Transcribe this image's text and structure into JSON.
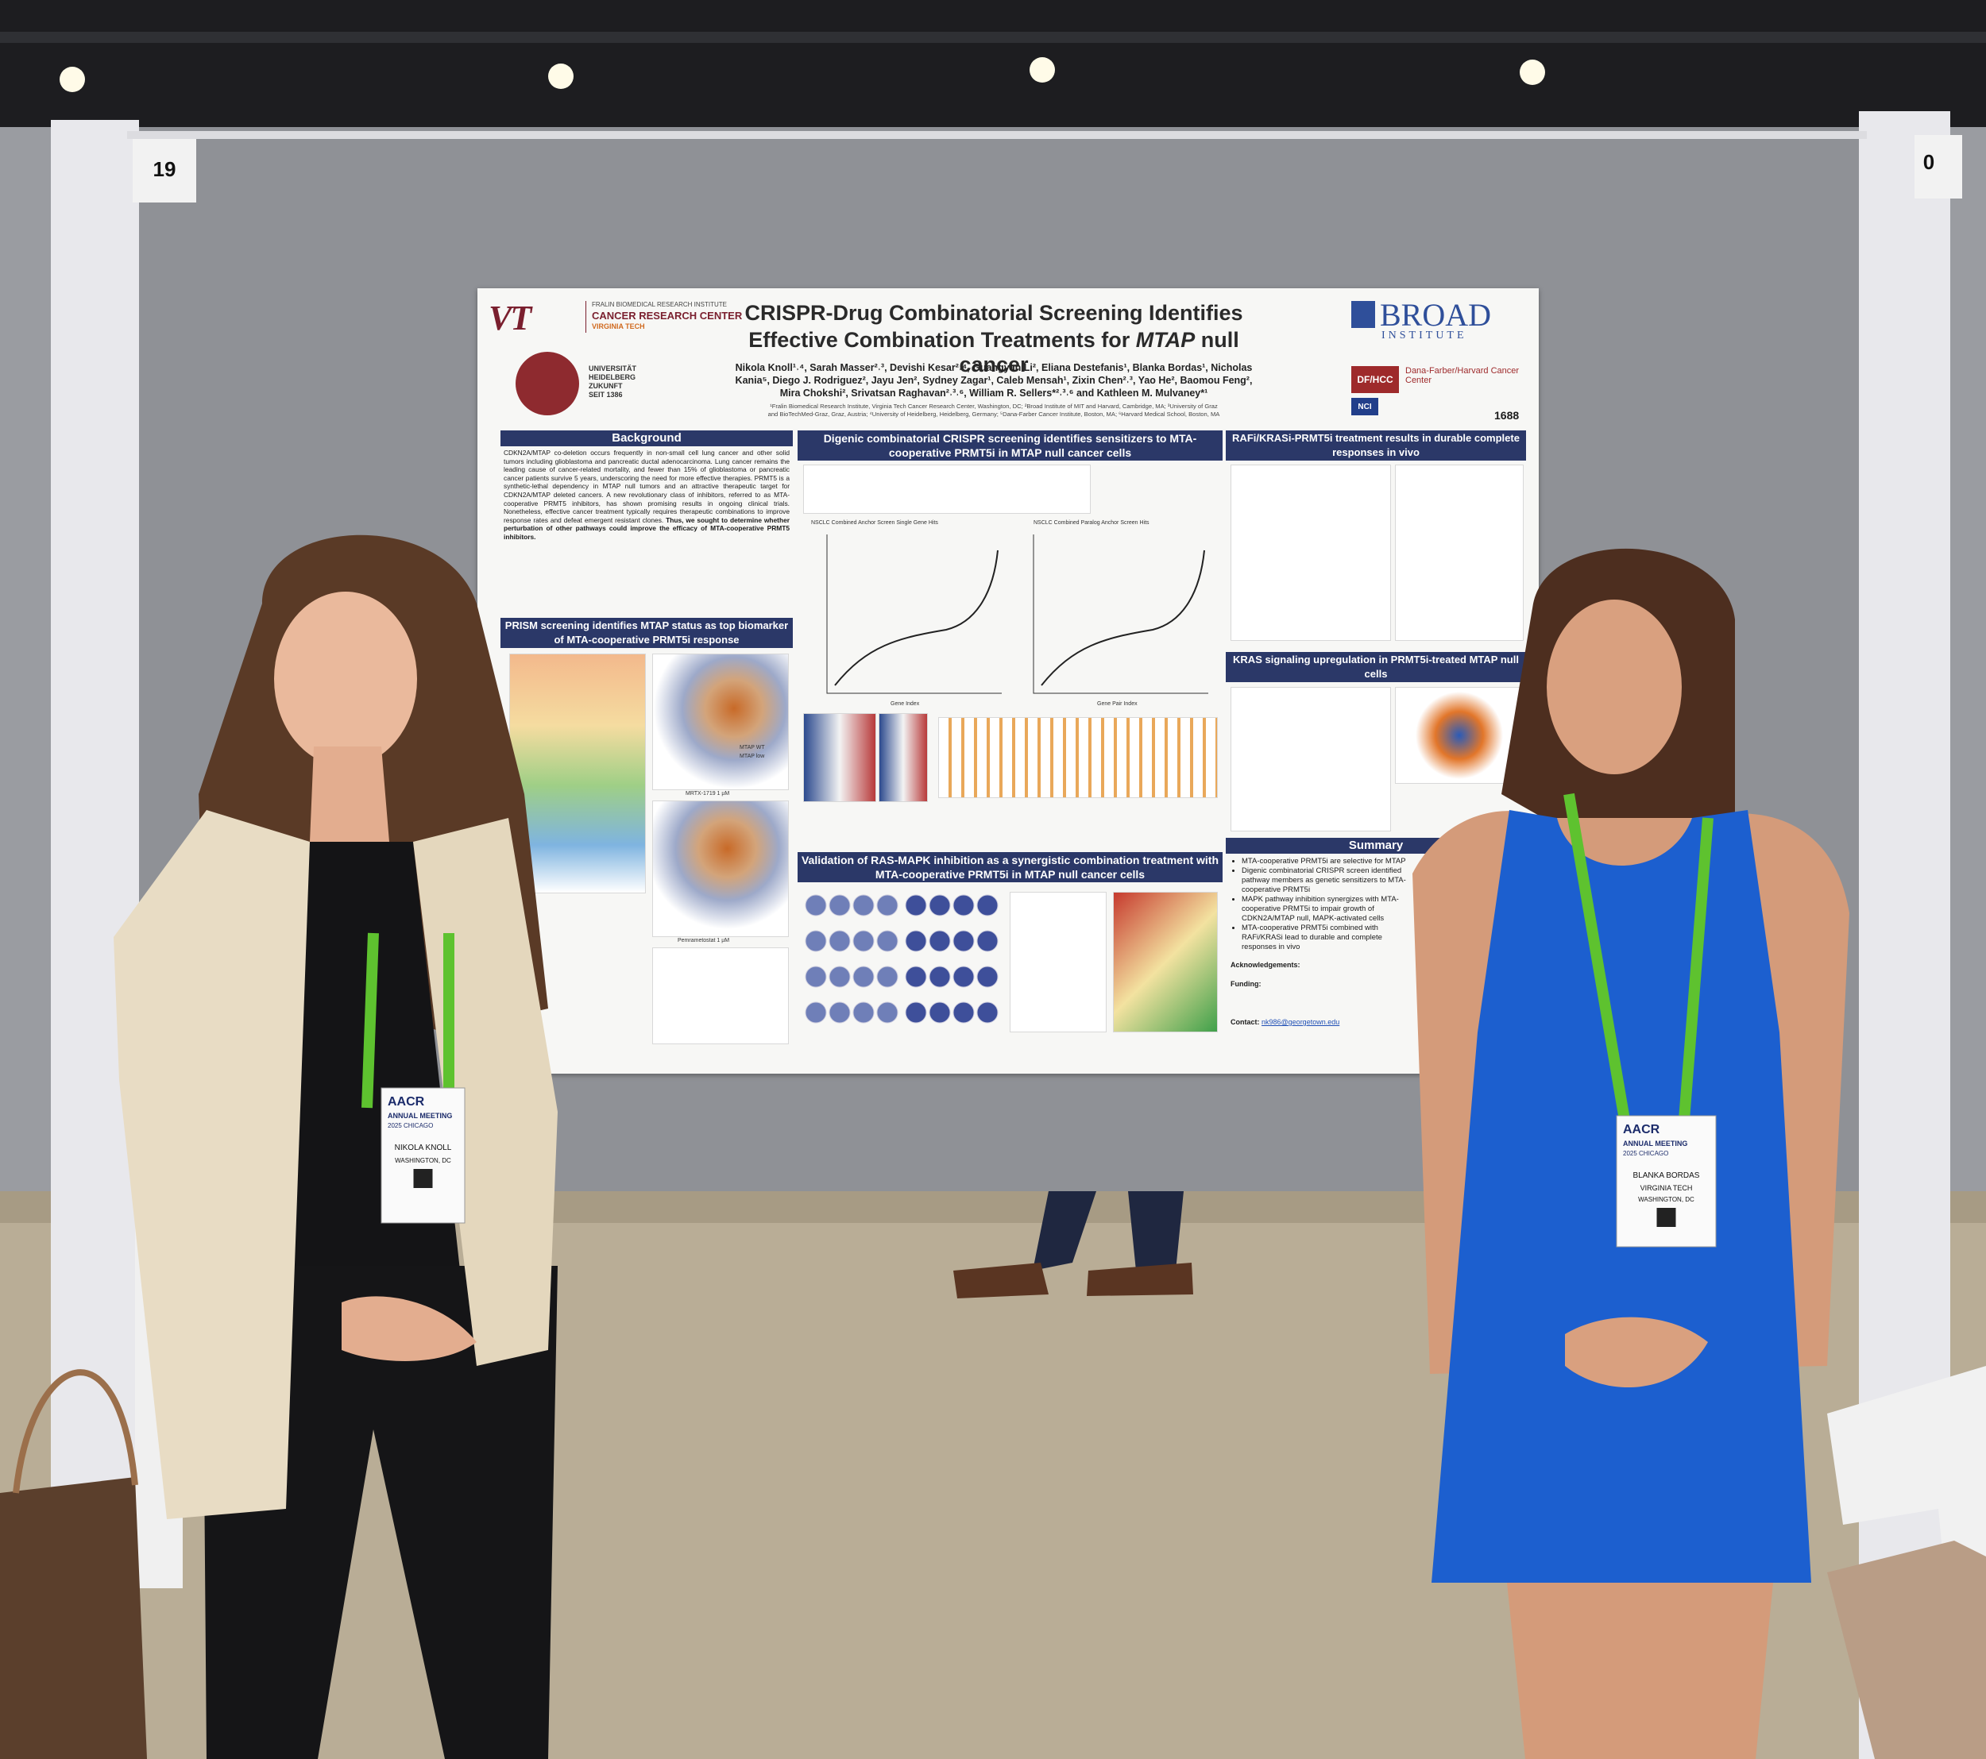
{
  "booth": {
    "left_number": "19",
    "right_number": "0"
  },
  "poster": {
    "logo_vt": "VT",
    "fralin_line1": "FRALIN BIOMEDICAL RESEARCH INSTITUTE",
    "fralin_line2": "CANCER RESEARCH CENTER",
    "fralin_line3": "VIRGINIA TECH",
    "heidelberg": [
      "UNIVERSITÄT",
      "HEIDELBERG",
      "ZUKUNFT",
      "SEIT 1386"
    ],
    "title_line1": "CRISPR-Drug Combinatorial Screening Identifies",
    "title_line2_pre": "Effective Combination Treatments for ",
    "title_line2_em": "MTAP",
    "title_line2_post": " null cancer",
    "authors": [
      "Nikola Knoll¹˒⁴, Sarah Masser²˒³, Devishi Kesar²˒⁴, Guangyan Li², Eliana Destefanis¹, Blanka Bordas¹, Nicholas",
      "Kania⁵, Diego J. Rodriguez², Jayu Jen², Sydney Zagar¹, Caleb Mensah¹, Zixin Chen²˒³, Yao He², Baomou Feng²,",
      "Mira Chokshi², Srivatsan Raghavan²˒³˒⁶, William R. Sellers*²˒³˒⁶ and Kathleen M. Mulvaney*¹"
    ],
    "affiliations": [
      "¹Fralin Biomedical Research Institute, Virginia Tech Cancer Research Center, Washington, DC; ²Broad Institute of MIT and Harvard, Cambridge, MA; ³University of Graz",
      "and BioTechMed-Graz, Graz, Austria; ⁴University of Heidelberg, Heidelberg, Germany; ⁵Dana-Farber Cancer Institute, Boston, MA; ⁶Harvard Medical School, Boston, MA"
    ],
    "broad_line1": "BROAD",
    "broad_line2": "INSTITUTE",
    "dfhcc_badge": "DF/HCC",
    "dfhcc_name": "Dana-Farber/Harvard Cancer Center",
    "nci": "NCI",
    "poster_number": "1688",
    "background_header": "Background",
    "background_text": "CDKN2A/MTAP co-deletion occurs frequently in non-small cell lung cancer and other solid tumors including glioblastoma and pancreatic ductal adenocarcinoma. Lung cancer remains the leading cause of cancer-related mortality, and fewer than 15% of glioblastoma or pancreatic cancer patients survive 5 years, underscoring the need for more effective therapies. PRMT5 is a synthetic-lethal dependency in MTAP null tumors and an attractive therapeutic target for CDKN2A/MTAP deleted cancers. A new revolutionary class of inhibitors, referred to as MTA-cooperative PRMT5 inhibitors, has shown promising results in ongoing clinical trials. Nonetheless, effective cancer treatment typically requires therapeutic combinations to improve response rates and defeat emergent resistant clones.",
    "background_bold": "Thus, we sought to determine whether perturbation of other pathways could improve the efficacy of MTA-cooperative PRMT5 inhibitors.",
    "prism_header": "PRISM screening identifies MTAP status as top biomarker of MTA-cooperative PRMT5i response",
    "prism_axis": "MRTX-1719 1 µM",
    "prism_axis2": "Pemrametostat 1 µM",
    "legend_wt": "MTAP WT",
    "legend_low": "MTAP low",
    "digenic_header": "Digenic combinatorial CRISPR screening identifies sensitizers to MTA-cooperative PRMT5i in MTAP null cancer cells",
    "plot1_title": "NSCLC Combined Anchor Screen Single Gene Hits",
    "plot2_title": "NSCLC Combined Paralog Anchor Screen Hits",
    "plot1_x": "Gene Index",
    "plot2_x": "Gene Pair Index",
    "validation_header": "Validation of RAS-MAPK inhibition as a synergistic combination treatment with MTA-cooperative PRMT5i in MTAP null cancer cells",
    "rafi_header": "RAFi/KRASi-PRMT5i treatment results in durable complete responses in vivo",
    "kras_header": "KRAS signaling upregulation in PRMT5i-treated MTAP null cells",
    "summary_header": "Summary",
    "summary_bullets": [
      "MTA-cooperative PRMT5i are selective for MTAP",
      "Digenic combinatorial CRISPR screen identified pathway members as genetic sensitizers to MTA-cooperative PRMT5i",
      "MAPK pathway inhibition synergizes with MTA-cooperative PRMT5i to impair growth of CDKN2A/MTAP null, MAPK-activated cells",
      "MTA-cooperative PRMT5i combined with RAFi/KRASi lead to durable and complete responses in vivo"
    ],
    "acknowledgements_label": "Acknowledgements:",
    "funding_label": "Funding:",
    "contact_label": "Contact:",
    "contact_email": "nk986@georgetown.edu"
  },
  "badges": [
    {
      "event": "AACR",
      "meeting": "ANNUAL MEETING",
      "edition": "2025 CHICAGO",
      "name": "NIKOLA KNOLL",
      "location": "WASHINGTON, DC"
    },
    {
      "event": "AACR",
      "meeting": "ANNUAL MEETING",
      "edition": "2025 CHICAGO",
      "name": "BLANKA BORDAS",
      "organization": "VIRGINIA TECH",
      "location": "WASHINGTON, DC"
    }
  ]
}
